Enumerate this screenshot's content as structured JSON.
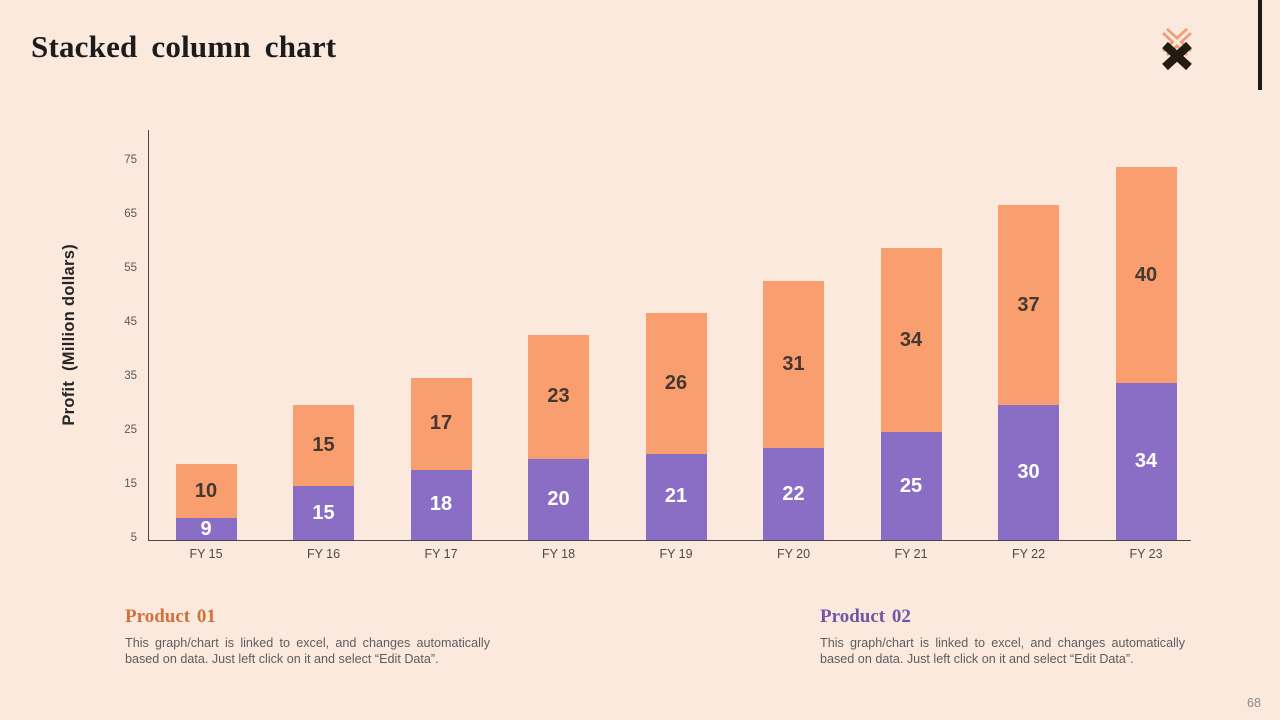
{
  "slide": {
    "title": "Stacked column chart",
    "page_number": "68"
  },
  "chart_data": {
    "type": "bar",
    "stacked": true,
    "categories": [
      "FY 15",
      "FY 16",
      "FY 17",
      "FY 18",
      "FY 19",
      "FY 20",
      "FY 21",
      "FY 22",
      "FY 23"
    ],
    "series": [
      {
        "name": "Product 02",
        "color": "#8a6ec6",
        "label_color": "#ffffff",
        "values": [
          9,
          15,
          18,
          20,
          21,
          22,
          25,
          30,
          34
        ]
      },
      {
        "name": "Product 01",
        "color": "#f99e6e",
        "label_color": "#453831",
        "values": [
          10,
          15,
          17,
          23,
          26,
          31,
          34,
          37,
          40
        ]
      }
    ],
    "ylabel": "Profit  (Million dollars)",
    "yticks": [
      5,
      15,
      25,
      35,
      45,
      55,
      65,
      75
    ],
    "ylim": [
      5,
      80
    ],
    "grid": false,
    "legend_position": "none"
  },
  "products": [
    {
      "name": "Product 01",
      "accent": "#d2713a",
      "description": "This graph/chart is linked to excel, and changes automatically based on data. Just left click on it and select “Edit Data”."
    },
    {
      "name": "Product 02",
      "accent": "#6f56a6",
      "description": "This graph/chart is linked to excel, and changes automatically based on data. Just left click on it and select “Edit Data”."
    }
  ],
  "icons": {
    "brand": "double-x-icon"
  },
  "colors": {
    "background": "#fce9de",
    "axis": "#474747",
    "accent_black": "#1d1a16"
  }
}
